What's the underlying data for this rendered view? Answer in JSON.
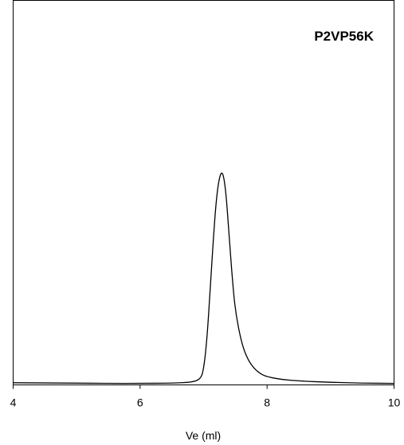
{
  "chart_data": {
    "type": "line",
    "annotation": "P2VP56K",
    "xlabel": "Ve (ml)",
    "ylabel": "",
    "xlim": [
      4,
      10
    ],
    "ylim": [
      0,
      1
    ],
    "xticks": [
      4,
      6,
      8,
      10
    ],
    "xtick_labels": [
      "4",
      "6",
      "8",
      "10"
    ],
    "grid": false,
    "legend": "none",
    "line_color": "#000000",
    "series": [
      {
        "x": [
          4.0,
          4.5,
          5.0,
          5.5,
          6.0,
          6.5,
          6.8,
          6.95,
          7.0,
          7.05,
          7.1,
          7.15,
          7.2,
          7.25,
          7.3,
          7.35,
          7.4,
          7.45,
          7.5,
          7.6,
          7.7,
          7.8,
          7.9,
          8.0,
          8.2,
          8.5,
          9.0,
          9.5,
          10.0
        ],
        "y": [
          0.01,
          0.009,
          0.008,
          0.007,
          0.007,
          0.008,
          0.012,
          0.025,
          0.07,
          0.2,
          0.42,
          0.66,
          0.86,
          0.965,
          0.99,
          0.9,
          0.7,
          0.5,
          0.34,
          0.19,
          0.115,
          0.075,
          0.05,
          0.038,
          0.026,
          0.018,
          0.012,
          0.008,
          0.007
        ]
      }
    ]
  }
}
